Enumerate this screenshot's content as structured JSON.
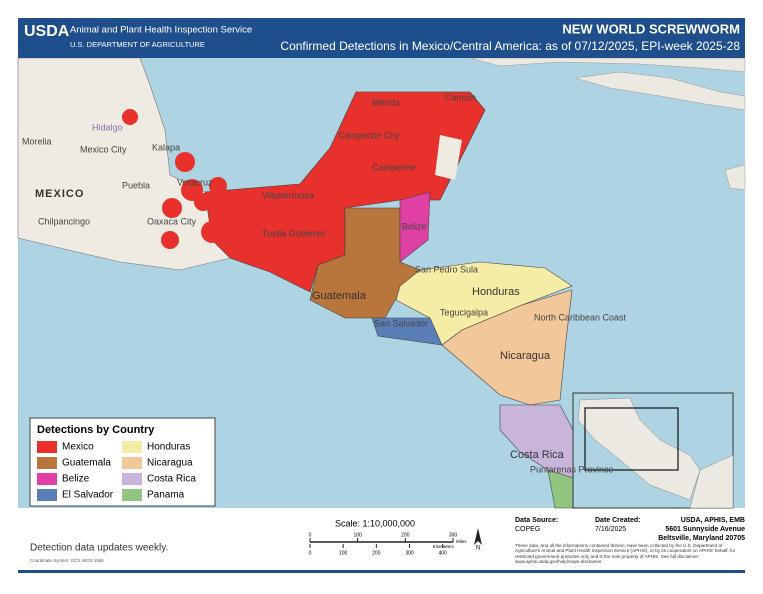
{
  "header": {
    "agency_logo": "USDA",
    "agency": "Animal and Plant Health Inspection Service",
    "department": "U.S. DEPARTMENT OF AGRICULTURE",
    "title": "NEW WORLD SCREWWORM",
    "subtitle": "Confirmed Detections in Mexico/Central America: as of 07/12/2025, EPI-week 2025-28"
  },
  "map": {
    "labels": [
      "Mérida",
      "Cancún",
      "Campeche City",
      "Campeche",
      "Villahermosa",
      "Tuxtla Gutiérrez",
      "Oaxaca City",
      "Veracruz",
      "Puebla",
      "Mexico City",
      "Morelia",
      "Hidalgo",
      "Kalapa",
      "MEXICO",
      "Chilpancingo",
      "Belize",
      "San Pedro Sula",
      "Honduras",
      "Tegucigalpa",
      "North Caribbean Coast",
      "Nicaragua",
      "Guatemala",
      "San Salvador",
      "Costa Rica",
      "Puntarenas Province"
    ]
  },
  "legend": {
    "title": "Detections by Country",
    "items": [
      {
        "label": "Mexico",
        "color": "#e8312c"
      },
      {
        "label": "Guatemala",
        "color": "#b8753c"
      },
      {
        "label": "Belize",
        "color": "#e03fa4"
      },
      {
        "label": "El Salvador",
        "color": "#5a7fb8"
      },
      {
        "label": "Honduras",
        "color": "#f5eca6"
      },
      {
        "label": "Nicaragua",
        "color": "#f2c79a"
      },
      {
        "label": "Costa Rica",
        "color": "#c9b5d9"
      },
      {
        "label": "Panama",
        "color": "#92c57f"
      }
    ]
  },
  "footer": {
    "note": "Detection data updates weekly.",
    "coordinate_system": "Coordinate System: GCS WGS 1984",
    "scale": "Scale: 1:10,000,000",
    "miles_ticks": [
      0,
      100,
      200,
      300
    ],
    "miles_label": "Miles",
    "km_ticks": [
      0,
      100,
      200,
      300,
      400
    ],
    "km_label": "Kilometers",
    "north": "N",
    "source_label": "Data Source:",
    "source_value": "COPEG",
    "date_label": "Date Created:",
    "date_value": "7/16/2025",
    "address": [
      "USDA, APHIS, EMB",
      "5601 Sunnyside Avenue",
      "Beltsville, Maryland 20705"
    ],
    "disclaimer": "These data, and all the informations contained therein, have been collected by the U.S. Department of Agriculture's Animal and Plant Health Inspection Service (APHIS), or by its cooperators on APHIS' behalf, for restricted government purposes only and is the sole property of APHIS. See full disclaimer: www.aphis.usda.gov/help/maps-disclaimer"
  }
}
